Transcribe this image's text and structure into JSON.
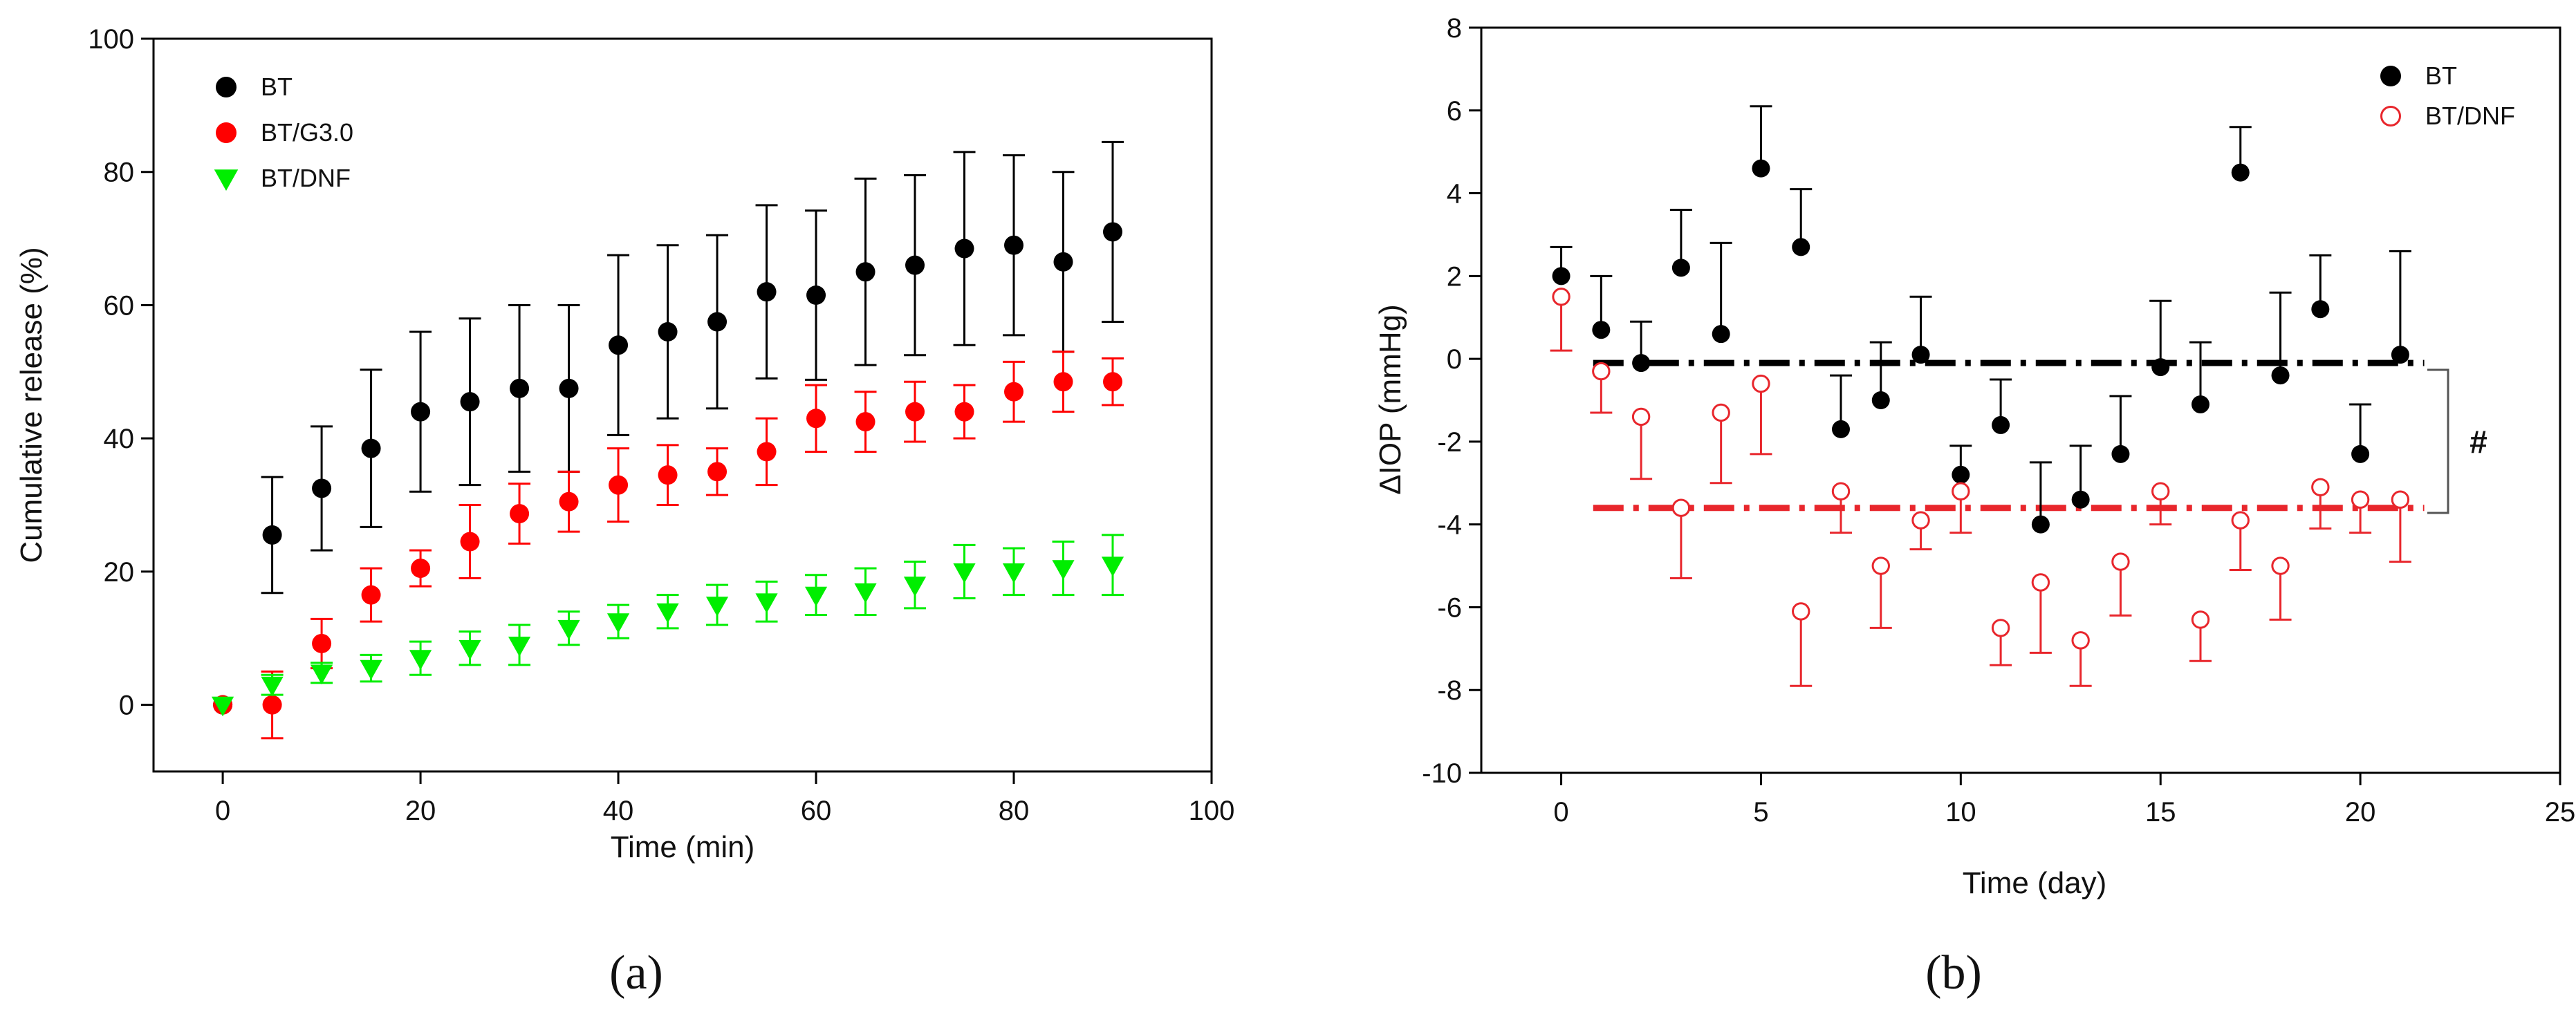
{
  "chart_data": [
    {
      "type": "scatter",
      "panel_label": "(a)",
      "xlabel": "Time (min)",
      "ylabel": "Cumulative release (%)",
      "xlim": [
        -7,
        100
      ],
      "ylim": [
        -10,
        100
      ],
      "xticks": [
        0,
        20,
        40,
        60,
        80,
        100
      ],
      "yticks": [
        0,
        20,
        40,
        60,
        80,
        100
      ],
      "xtick_labels": [
        "0",
        "20",
        "40",
        "60",
        "80",
        "100"
      ],
      "ytick_labels": [
        "0",
        "20",
        "40",
        "60",
        "80",
        "100"
      ],
      "legend_position": "top-left",
      "series": [
        {
          "name": "BT",
          "color": "#000000",
          "marker": "circle",
          "error_dir": "both",
          "x": [
            0,
            5,
            10,
            15,
            20,
            25,
            30,
            35,
            40,
            45,
            50,
            55,
            60,
            65,
            70,
            75,
            80,
            85,
            90
          ],
          "values": [
            0,
            25.5,
            32.5,
            38.5,
            44,
            45.5,
            47.5,
            47.5,
            54,
            56,
            57.5,
            62,
            61.5,
            65,
            66,
            68.5,
            69,
            66.5,
            71
          ],
          "errors": [
            0,
            8.7,
            9.3,
            11.8,
            12,
            12.5,
            12.5,
            12.5,
            13.5,
            13,
            13,
            13,
            12.7,
            14,
            13.5,
            14.5,
            13.5,
            13.5,
            13.5
          ]
        },
        {
          "name": "BT/G3.0",
          "color": "#ff0000",
          "marker": "circle",
          "error_dir": "both",
          "x": [
            0,
            5,
            10,
            15,
            20,
            25,
            30,
            35,
            40,
            45,
            50,
            55,
            60,
            65,
            70,
            75,
            80,
            85,
            90
          ],
          "values": [
            0,
            0,
            9.2,
            16.5,
            20.5,
            24.5,
            28.7,
            30.5,
            33,
            34.5,
            35,
            38,
            43,
            42.5,
            44,
            44,
            47,
            48.5,
            48.5
          ],
          "errors": [
            0,
            5,
            3.7,
            4,
            2.7,
            5.5,
            4.5,
            4.5,
            5.5,
            4.5,
            3.5,
            5,
            5,
            4.5,
            4.5,
            4,
            4.5,
            4.5,
            3.5
          ]
        },
        {
          "name": "BT/DNF",
          "color": "#00ee00",
          "marker": "triangle-down",
          "error_dir": "both",
          "x": [
            0,
            5,
            10,
            15,
            20,
            25,
            30,
            35,
            40,
            45,
            50,
            55,
            60,
            65,
            70,
            75,
            80,
            85,
            90
          ],
          "values": [
            0,
            3,
            4.8,
            5.5,
            7,
            8.5,
            9,
            11.5,
            12.5,
            14,
            15,
            15.5,
            16.5,
            17,
            18,
            20,
            20,
            20.5,
            21
          ],
          "errors": [
            0,
            1.5,
            1.5,
            2,
            2.5,
            2.5,
            3,
            2.5,
            2.5,
            2.5,
            3,
            3,
            3,
            3.5,
            3.5,
            4,
            3.5,
            4,
            4.5
          ]
        }
      ]
    },
    {
      "type": "scatter",
      "panel_label": "(b)",
      "xlabel": "Time (day)",
      "ylabel": "ΔIOP (mmHg)",
      "xlim": [
        -2,
        25
      ],
      "ylim": [
        -10,
        8
      ],
      "xticks": [
        0,
        5,
        10,
        15,
        20,
        25
      ],
      "yticks": [
        -10,
        -8,
        -6,
        -4,
        -2,
        0,
        2,
        4,
        6,
        8
      ],
      "xtick_labels": [
        "0",
        "5",
        "10",
        "15",
        "20",
        "25"
      ],
      "ytick_labels": [
        "-10",
        "-8",
        "-6",
        "-4",
        "-2",
        "0",
        "2",
        "4",
        "6",
        "8"
      ],
      "legend_position": "top-right",
      "annotation": "#",
      "series": [
        {
          "name": "BT",
          "color": "#000000",
          "marker": "circle",
          "error_dir": "up",
          "x": [
            0,
            1,
            2,
            3,
            4,
            5,
            6,
            7,
            8,
            9,
            10,
            11,
            12,
            13,
            14,
            15,
            16,
            17,
            18,
            19,
            20,
            21
          ],
          "values": [
            2.0,
            0.7,
            -0.1,
            2.2,
            0.6,
            4.6,
            2.7,
            -1.7,
            -1.0,
            0.1,
            -2.8,
            -1.6,
            -4.0,
            -3.4,
            -2.3,
            -0.2,
            -1.1,
            4.5,
            -0.4,
            1.2,
            -2.3,
            0.1
          ],
          "errors": [
            0.7,
            1.3,
            1.0,
            1.4,
            2.2,
            1.5,
            1.4,
            1.3,
            1.4,
            1.4,
            0.7,
            1.1,
            1.5,
            1.3,
            1.4,
            1.6,
            1.5,
            1.1,
            2.0,
            1.3,
            1.2,
            2.5
          ]
        },
        {
          "name": "BT/DNF",
          "color": "#e8262c",
          "marker": "open-circle",
          "error_dir": "down",
          "x": [
            0,
            1,
            2,
            3,
            4,
            5,
            6,
            7,
            8,
            9,
            10,
            11,
            12,
            13,
            14,
            15,
            16,
            17,
            18,
            19,
            20,
            21
          ],
          "values": [
            1.5,
            -0.3,
            -1.4,
            -3.6,
            -1.3,
            -0.6,
            -6.1,
            -3.2,
            -5.0,
            -3.9,
            -3.2,
            -6.5,
            -5.4,
            -6.8,
            -4.9,
            -3.2,
            -6.3,
            -3.9,
            -5.0,
            -3.1,
            -3.4,
            -3.4
          ],
          "errors": [
            1.3,
            1.0,
            1.5,
            1.7,
            1.7,
            1.7,
            1.8,
            1.0,
            1.5,
            0.7,
            1.0,
            0.9,
            1.7,
            1.1,
            1.3,
            0.8,
            1.0,
            1.2,
            1.3,
            1.0,
            0.8,
            1.5
          ]
        }
      ],
      "mean_lines": [
        {
          "name": "BT mean",
          "color": "#000000",
          "y": -0.1,
          "x_range": [
            0.8,
            21.6
          ]
        },
        {
          "name": "BT/DNF mean",
          "color": "#e8262c",
          "y": -3.6,
          "x_range": [
            0.8,
            21.6
          ]
        }
      ]
    }
  ]
}
